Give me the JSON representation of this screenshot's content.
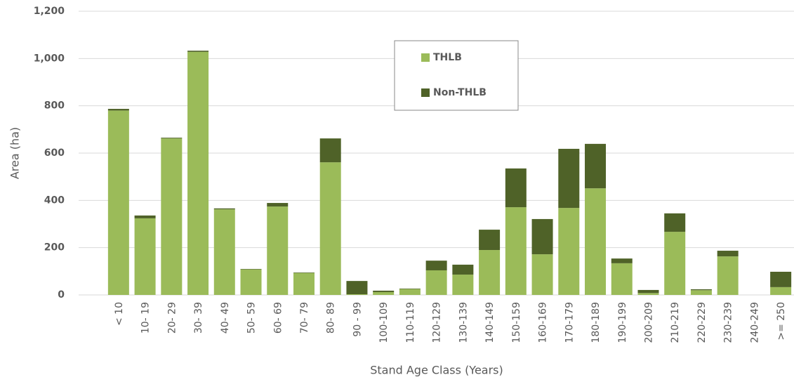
{
  "chart_data": {
    "type": "stacked_bar",
    "x_label": "Stand Age Class (Years)",
    "y_label": "Area (ha)",
    "categories": [
      "< 10",
      "10- 19",
      "20- 29",
      "30- 39",
      "40- 49",
      "50- 59",
      "60- 69",
      "70- 79",
      "80- 89",
      "90 - 99",
      "100-109",
      "110-119",
      "120-129",
      "130-139",
      "140-149",
      "150-159",
      "160-169",
      "170-179",
      "180-189",
      "190-199",
      "200-209",
      "210-219",
      "220-229",
      "230-239",
      "240-249",
      ">= 250"
    ],
    "series": [
      {
        "name": "THLB",
        "color": "#9bbb59",
        "values": [
          780,
          324,
          662,
          1028,
          362,
          108,
          374,
          93,
          561,
          3,
          12,
          25,
          104,
          86,
          190,
          371,
          172,
          368,
          451,
          134,
          8,
          267,
          20,
          163,
          0,
          33
        ]
      },
      {
        "name": "Non-THLB",
        "color": "#4f6228",
        "values": [
          7,
          12,
          3,
          5,
          4,
          2,
          15,
          2,
          101,
          56,
          6,
          2,
          41,
          42,
          86,
          164,
          149,
          250,
          188,
          20,
          13,
          78,
          4,
          24,
          0,
          65
        ]
      }
    ],
    "ylim": [
      0,
      1200
    ],
    "yticks": [
      0,
      200,
      400,
      600,
      800,
      {
        "value": 1000,
        "label": "1,000"
      },
      {
        "value": 1200,
        "label": "1,200"
      }
    ],
    "grid": true,
    "legend": "top"
  }
}
